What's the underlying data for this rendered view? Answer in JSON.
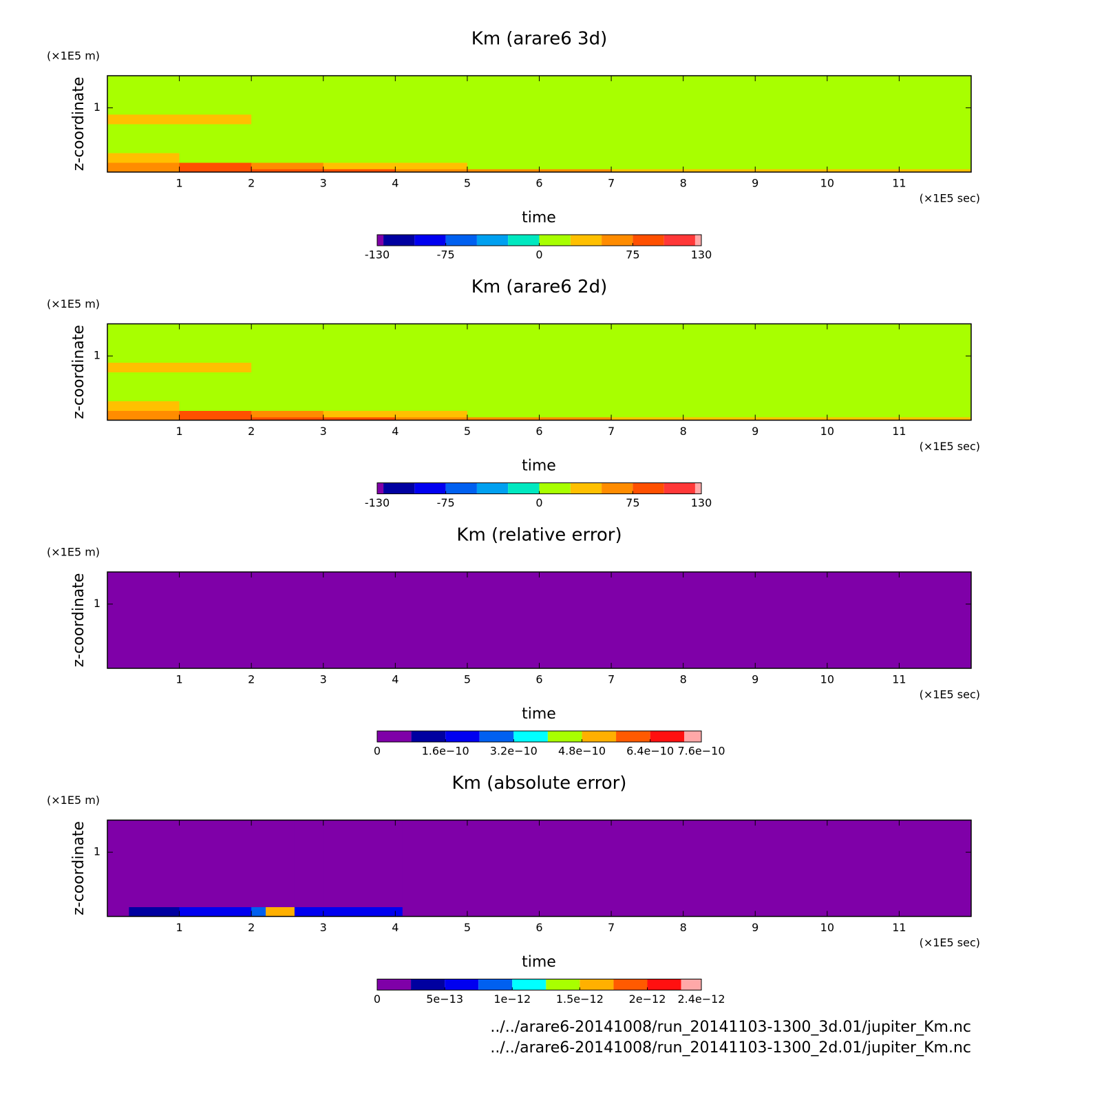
{
  "chart_data": [
    {
      "type": "contour",
      "title": "Km (arare6 3d)",
      "xlabel": "time",
      "ylabel": "z-coordinate",
      "xunit": "(×1E5 sec)",
      "yunit": "(×1E5 m)",
      "xlim": [
        0,
        12
      ],
      "xticks": [
        1,
        2,
        3,
        4,
        5,
        6,
        7,
        8,
        9,
        10,
        11
      ],
      "ylim": [
        0,
        1.5
      ],
      "yticks": [
        1
      ],
      "x_edges": [
        0,
        1,
        2,
        3,
        4,
        5,
        6,
        7,
        8,
        9,
        10,
        11,
        12
      ],
      "y_edges": [
        0,
        0.05,
        0.15,
        0.3,
        0.75,
        0.9,
        1.5
      ],
      "z": [
        [
          60,
          90,
          85,
          75,
          60,
          55,
          50,
          45,
          40,
          35,
          30,
          30
        ],
        [
          55,
          80,
          60,
          40,
          30,
          20,
          15,
          10,
          10,
          10,
          10,
          10
        ],
        [
          40,
          15,
          10,
          10,
          10,
          10,
          10,
          10,
          10,
          10,
          10,
          10
        ],
        [
          10,
          10,
          10,
          10,
          10,
          10,
          10,
          10,
          10,
          10,
          10,
          10
        ],
        [
          35,
          30,
          10,
          10,
          10,
          10,
          10,
          10,
          10,
          10,
          10,
          10
        ],
        [
          10,
          10,
          10,
          10,
          10,
          10,
          10,
          10,
          10,
          10,
          10,
          10
        ]
      ],
      "levels": [
        -130,
        -125,
        -100,
        -75,
        -50,
        -25,
        0,
        25,
        50,
        75,
        100,
        125,
        130
      ],
      "colors": [
        "#7f00a8",
        "#0000a0",
        "#0000f0",
        "#0060f0",
        "#00a0f0",
        "#00e8c0",
        "#a8ff00",
        "#ffc000",
        "#ff8c00",
        "#ff5000",
        "#ff3838",
        "#ffa8a8"
      ],
      "cticks": [
        -130,
        -75,
        0,
        75,
        130
      ]
    },
    {
      "type": "contour",
      "title": "Km (arare6 2d)",
      "xlabel": "time",
      "ylabel": "z-coordinate",
      "xunit": "(×1E5 sec)",
      "yunit": "(×1E5 m)",
      "xlim": [
        0,
        12
      ],
      "xticks": [
        1,
        2,
        3,
        4,
        5,
        6,
        7,
        8,
        9,
        10,
        11
      ],
      "ylim": [
        0,
        1.5
      ],
      "yticks": [
        1
      ],
      "x_edges": [
        0,
        1,
        2,
        3,
        4,
        5,
        6,
        7,
        8,
        9,
        10,
        11,
        12
      ],
      "y_edges": [
        0,
        0.05,
        0.15,
        0.3,
        0.75,
        0.9,
        1.5
      ],
      "z": [
        [
          60,
          90,
          85,
          75,
          60,
          55,
          50,
          45,
          40,
          35,
          30,
          30
        ],
        [
          55,
          80,
          60,
          40,
          30,
          20,
          15,
          10,
          10,
          10,
          10,
          10
        ],
        [
          40,
          15,
          10,
          10,
          10,
          10,
          10,
          10,
          10,
          10,
          10,
          10
        ],
        [
          10,
          10,
          10,
          10,
          10,
          10,
          10,
          10,
          10,
          10,
          10,
          10
        ],
        [
          35,
          30,
          10,
          10,
          10,
          10,
          10,
          10,
          10,
          10,
          10,
          10
        ],
        [
          10,
          10,
          10,
          10,
          10,
          10,
          10,
          10,
          10,
          10,
          10,
          10
        ]
      ],
      "levels": [
        -130,
        -125,
        -100,
        -75,
        -50,
        -25,
        0,
        25,
        50,
        75,
        100,
        125,
        130
      ],
      "colors": [
        "#7f00a8",
        "#0000a0",
        "#0000f0",
        "#0060f0",
        "#00a0f0",
        "#00e8c0",
        "#a8ff00",
        "#ffc000",
        "#ff8c00",
        "#ff5000",
        "#ff3838",
        "#ffa8a8"
      ],
      "cticks": [
        -130,
        -75,
        0,
        75,
        130
      ]
    },
    {
      "type": "contour",
      "title": "Km (relative error)",
      "xlabel": "time",
      "ylabel": "z-coordinate",
      "xunit": "(×1E5 sec)",
      "yunit": "(×1E5 m)",
      "xlim": [
        0,
        12
      ],
      "xticks": [
        1,
        2,
        3,
        4,
        5,
        6,
        7,
        8,
        9,
        10,
        11
      ],
      "ylim": [
        0,
        1.5
      ],
      "yticks": [
        1
      ],
      "x_edges": [
        0,
        12
      ],
      "y_edges": [
        0,
        1.5
      ],
      "z": [
        [
          0
        ]
      ],
      "levels": [
        0,
        8e-11,
        1.6e-10,
        2.4e-10,
        3.2e-10,
        4e-10,
        4.8e-10,
        5.6e-10,
        6.4e-10,
        7.2e-10,
        7.6e-10
      ],
      "colors": [
        "#7f00a8",
        "#0000a0",
        "#0000f0",
        "#0060f0",
        "#00ffff",
        "#a8ff00",
        "#ffb000",
        "#ff5a00",
        "#ff1010",
        "#ffa8a8"
      ],
      "cticks": [
        0,
        {
          "value": 1.6e-10,
          "label": "1.6e−10"
        },
        {
          "value": 3.2e-10,
          "label": "3.2e−10"
        },
        {
          "value": 4.8e-10,
          "label": "4.8e−10"
        },
        {
          "value": 6.4e-10,
          "label": "6.4e−10"
        },
        {
          "value": 7.6e-10,
          "label": "7.6e−10"
        }
      ]
    },
    {
      "type": "contour",
      "title": "Km (absolute error)",
      "xlabel": "time",
      "ylabel": "z-coordinate",
      "xunit": "(×1E5 sec)",
      "yunit": "(×1E5 m)",
      "xlim": [
        0,
        12
      ],
      "xticks": [
        1,
        2,
        3,
        4,
        5,
        6,
        7,
        8,
        9,
        10,
        11
      ],
      "ylim": [
        0,
        1.5
      ],
      "yticks": [
        1
      ],
      "x_edges": [
        0,
        0.3,
        1,
        2,
        2.2,
        2.6,
        3,
        4.1,
        12
      ],
      "y_edges": [
        0,
        0.15,
        1.5
      ],
      "z": [
        [
          0,
          4e-13,
          6e-13,
          8e-13,
          1.6e-12,
          7e-13,
          5e-13,
          0
        ],
        [
          0,
          0,
          0,
          0,
          0,
          0,
          0,
          0
        ]
      ],
      "levels": [
        0,
        2.5e-13,
        5e-13,
        7.5e-13,
        1e-12,
        1.25e-12,
        1.5e-12,
        1.75e-12,
        2e-12,
        2.25e-12,
        2.4e-12
      ],
      "colors": [
        "#7f00a8",
        "#0000a0",
        "#0000f0",
        "#0060f0",
        "#00ffff",
        "#a8ff00",
        "#ffb000",
        "#ff5a00",
        "#ff1010",
        "#ffa8a8"
      ],
      "cticks": [
        0,
        {
          "value": 5e-13,
          "label": "5e−13"
        },
        {
          "value": 1e-12,
          "label": "1e−12"
        },
        {
          "value": 1.5e-12,
          "label": "1.5e−12"
        },
        {
          "value": 2e-12,
          "label": "2e−12"
        },
        {
          "value": 2.4e-12,
          "label": "2.4e−12"
        }
      ]
    }
  ],
  "footer": [
    "../../arare6-20141008/run_20141103-1300_3d.01/jupiter_Km.nc",
    "../../arare6-20141008/run_20141103-1300_2d.01/jupiter_Km.nc"
  ]
}
